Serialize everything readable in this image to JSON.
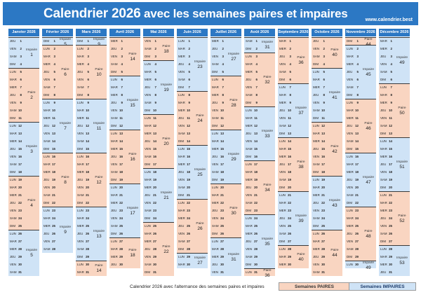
{
  "header": {
    "title_part1": "Calendrier 2026",
    "title_part2": " avec les semaines paires et impaires",
    "site": "www.calendrier.best"
  },
  "footer": {
    "caption": "Calendrier 2026 avec l'alternance des semaines paires et impaires",
    "legend_even": "Semaines PAIRES",
    "legend_odd": "Semaines IMPAIRES"
  },
  "labels": {
    "even": "Paire",
    "odd": "Impaire"
  },
  "colors": {
    "header_blue": "#2c78c4",
    "even_week": "#f9d5c1",
    "odd_week": "#cfe3f6"
  },
  "calendar": {
    "year": 2026,
    "first_weekday": "JEU",
    "weekday_abbr": [
      "LUN",
      "MAR",
      "MER",
      "JEU",
      "VEN",
      "SAM",
      "DIM"
    ],
    "months": [
      "Janvier 2026",
      "Février 2026",
      "Mars 2026",
      "Avril 2026",
      "Mai 2026",
      "Juin 2026",
      "Juillet 2026",
      "Août 2026",
      "Septembre 2026",
      "Octobre 2026",
      "Novembre 2026",
      "Décembre 2026"
    ],
    "month_lengths": [
      31,
      28,
      31,
      30,
      31,
      30,
      31,
      31,
      30,
      31,
      30,
      31
    ],
    "first_week_number": [
      1,
      5,
      9,
      14,
      18,
      23,
      27,
      31,
      36,
      40,
      44,
      49
    ]
  }
}
